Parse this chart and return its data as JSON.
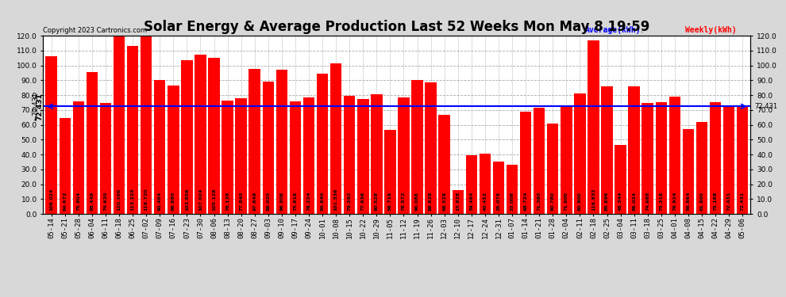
{
  "title": "Solar Energy & Average Production Last 52 Weeks Mon May 8 19:59",
  "copyright": "Copyright 2023 Cartronics.com",
  "legend_avg": "Average(kWh)",
  "legend_weekly": "Weekly(kWh)",
  "average_value": 72.431,
  "categories": [
    "05-14",
    "05-21",
    "05-28",
    "06-04",
    "06-11",
    "06-18",
    "06-25",
    "07-02",
    "07-09",
    "07-16",
    "07-23",
    "07-30",
    "08-06",
    "08-13",
    "08-20",
    "08-27",
    "09-03",
    "09-10",
    "09-17",
    "09-24",
    "10-01",
    "10-08",
    "10-15",
    "10-22",
    "10-29",
    "11-05",
    "11-12",
    "11-19",
    "11-26",
    "12-03",
    "12-10",
    "12-17",
    "12-24",
    "12-31",
    "01-07",
    "01-14",
    "01-21",
    "01-28",
    "02-04",
    "02-11",
    "02-18",
    "02-25",
    "03-04",
    "03-11",
    "03-18",
    "03-25",
    "04-01",
    "04-08",
    "04-15",
    "04-22",
    "04-29",
    "05-06"
  ],
  "values": [
    106.024,
    64.672,
    75.904,
    95.448,
    74.62,
    120.1,
    113.224,
    119.72,
    90.464,
    86.68,
    103.656,
    107.024,
    105.128,
    76.128,
    77.84,
    97.648,
    89.02,
    96.908,
    75.616,
    78.224,
    94.64,
    101.536,
    79.292,
    77.636,
    80.528,
    56.716,
    78.572,
    90.088,
    88.628,
    66.528,
    15.928,
    39.464,
    40.452,
    35.076,
    33.008,
    68.724,
    71.38,
    60.78,
    71.9,
    80.9,
    116.832,
    85.896,
    46.344,
    86.024,
    74.668,
    75.316,
    78.924,
    56.864,
    61.8,
    75.168,
    72.431,
    72.431
  ],
  "bar_color": "#ff0000",
  "avg_line_color": "#0000ff",
  "background_color": "#d8d8d8",
  "plot_bg_color": "#ffffff",
  "grid_color": "#aaaaaa",
  "title_fontsize": 12,
  "tick_fontsize": 6.5,
  "ylim": [
    0,
    120.1
  ],
  "yticks": [
    0.0,
    10.0,
    20.0,
    30.0,
    40.0,
    50.0,
    60.0,
    70.0,
    80.0,
    90.0,
    100.0,
    110.0,
    120.0
  ]
}
